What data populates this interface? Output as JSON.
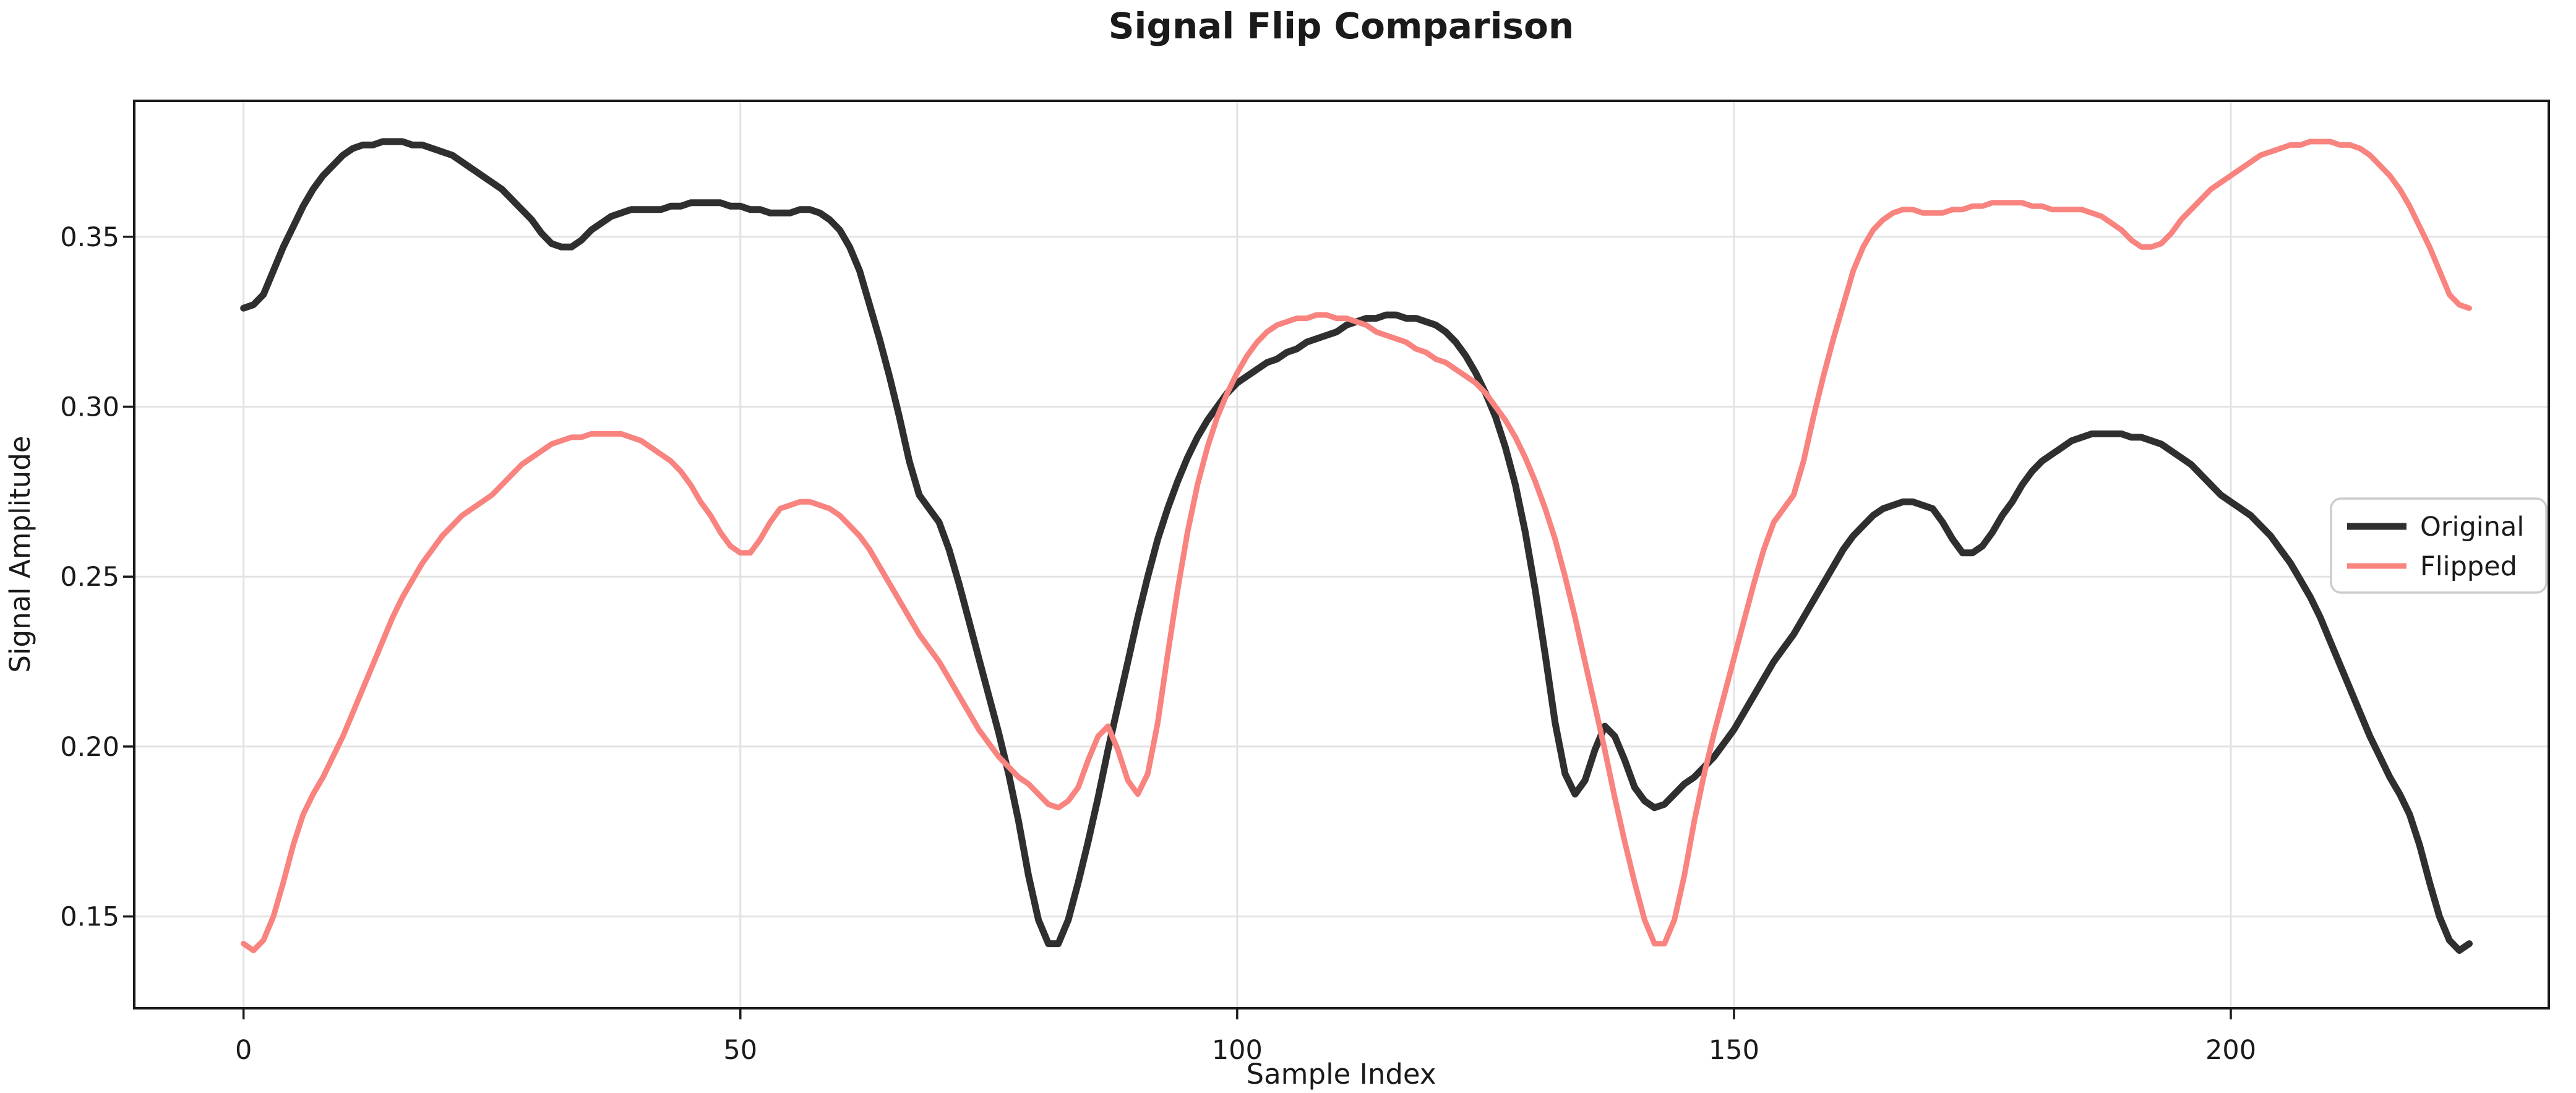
{
  "figure": {
    "title": "Signal Flip Comparison",
    "background": "#ffffff"
  },
  "axes": {
    "xlabel": "Sample Index",
    "ylabel": "Signal Amplitude",
    "x_ticks": [
      0,
      50,
      100,
      150,
      200
    ],
    "x_tick_labels": [
      "0",
      "50",
      "100",
      "150",
      "200"
    ],
    "y_ticks": [
      0.15,
      0.2,
      0.25,
      0.3,
      0.35
    ],
    "y_tick_labels": [
      "0.15",
      "0.20",
      "0.25",
      "0.30",
      "0.35"
    ],
    "xlim": [
      -11,
      232
    ],
    "ylim": [
      0.123,
      0.39
    ],
    "grid": true,
    "grid_color": "#e3e3e3",
    "spine_color": "#1a1a1a",
    "tick_color": "#1a1a1a"
  },
  "legend": {
    "position": "center-right",
    "border_color": "#cccccc",
    "background": "#ffffff",
    "items": [
      {
        "label": "Original",
        "color": "#2f2f2f",
        "linewidth": 11
      },
      {
        "label": "Flipped",
        "color": "#f8837f",
        "linewidth": 9
      }
    ]
  },
  "chart_data": {
    "type": "line",
    "title": "Signal Flip Comparison",
    "xlabel": "Sample Index",
    "ylabel": "Signal Amplitude",
    "x_description": "sample index 0..224, step 1",
    "n_points": 225,
    "xlim": [
      -11,
      232
    ],
    "ylim": [
      0.123,
      0.39
    ],
    "grid": true,
    "legend_position": "center-right",
    "flipped_is_reverse_of_original": true,
    "series": [
      {
        "name": "Original",
        "color": "#2f2f2f",
        "linewidth": 11,
        "values": [
          0.329,
          0.33,
          0.333,
          0.34,
          0.347,
          0.353,
          0.359,
          0.364,
          0.368,
          0.371,
          0.374,
          0.376,
          0.377,
          0.377,
          0.378,
          0.378,
          0.378,
          0.377,
          0.377,
          0.376,
          0.375,
          0.374,
          0.372,
          0.37,
          0.368,
          0.366,
          0.364,
          0.361,
          0.358,
          0.355,
          0.351,
          0.348,
          0.347,
          0.347,
          0.349,
          0.352,
          0.354,
          0.356,
          0.357,
          0.358,
          0.358,
          0.358,
          0.358,
          0.359,
          0.359,
          0.36,
          0.36,
          0.36,
          0.36,
          0.359,
          0.359,
          0.358,
          0.358,
          0.357,
          0.357,
          0.357,
          0.358,
          0.358,
          0.357,
          0.355,
          0.352,
          0.347,
          0.34,
          0.33,
          0.32,
          0.309,
          0.297,
          0.284,
          0.274,
          0.27,
          0.266,
          0.258,
          0.248,
          0.237,
          0.226,
          0.215,
          0.204,
          0.192,
          0.178,
          0.162,
          0.149,
          0.142,
          0.142,
          0.149,
          0.16,
          0.172,
          0.185,
          0.199,
          0.212,
          0.225,
          0.238,
          0.25,
          0.261,
          0.27,
          0.278,
          0.285,
          0.291,
          0.296,
          0.3,
          0.304,
          0.307,
          0.309,
          0.311,
          0.313,
          0.314,
          0.316,
          0.317,
          0.319,
          0.32,
          0.321,
          0.322,
          0.324,
          0.325,
          0.326,
          0.326,
          0.327,
          0.327,
          0.326,
          0.326,
          0.325,
          0.324,
          0.322,
          0.319,
          0.315,
          0.31,
          0.304,
          0.297,
          0.288,
          0.277,
          0.263,
          0.246,
          0.227,
          0.207,
          0.192,
          0.186,
          0.19,
          0.199,
          0.206,
          0.203,
          0.196,
          0.188,
          0.184,
          0.182,
          0.183,
          0.186,
          0.189,
          0.191,
          0.194,
          0.197,
          0.201,
          0.205,
          0.21,
          0.215,
          0.22,
          0.225,
          0.229,
          0.233,
          0.238,
          0.243,
          0.248,
          0.253,
          0.258,
          0.262,
          0.265,
          0.268,
          0.27,
          0.271,
          0.272,
          0.272,
          0.271,
          0.27,
          0.266,
          0.261,
          0.257,
          0.257,
          0.259,
          0.263,
          0.268,
          0.272,
          0.277,
          0.281,
          0.284,
          0.286,
          0.288,
          0.29,
          0.291,
          0.292,
          0.292,
          0.292,
          0.292,
          0.291,
          0.291,
          0.29,
          0.289,
          0.287,
          0.285,
          0.283,
          0.28,
          0.277,
          0.274,
          0.272,
          0.27,
          0.268,
          0.265,
          0.262,
          0.258,
          0.254,
          0.249,
          0.244,
          0.238,
          0.231,
          0.224,
          0.217,
          0.21,
          0.203,
          0.197,
          0.191,
          0.186,
          0.18,
          0.171,
          0.16,
          0.15,
          0.143,
          0.14,
          0.142
        ]
      },
      {
        "name": "Flipped",
        "color": "#f8837f",
        "linewidth": 9,
        "values": [
          0.142,
          0.14,
          0.143,
          0.15,
          0.16,
          0.171,
          0.18,
          0.186,
          0.191,
          0.197,
          0.203,
          0.21,
          0.217,
          0.224,
          0.231,
          0.238,
          0.244,
          0.249,
          0.254,
          0.258,
          0.262,
          0.265,
          0.268,
          0.27,
          0.272,
          0.274,
          0.277,
          0.28,
          0.283,
          0.285,
          0.287,
          0.289,
          0.29,
          0.291,
          0.291,
          0.292,
          0.292,
          0.292,
          0.292,
          0.291,
          0.29,
          0.288,
          0.286,
          0.284,
          0.281,
          0.277,
          0.272,
          0.268,
          0.263,
          0.259,
          0.257,
          0.257,
          0.261,
          0.266,
          0.27,
          0.271,
          0.272,
          0.272,
          0.271,
          0.27,
          0.268,
          0.265,
          0.262,
          0.258,
          0.253,
          0.248,
          0.243,
          0.238,
          0.233,
          0.229,
          0.225,
          0.22,
          0.215,
          0.21,
          0.205,
          0.201,
          0.197,
          0.194,
          0.191,
          0.189,
          0.186,
          0.183,
          0.182,
          0.184,
          0.188,
          0.196,
          0.203,
          0.206,
          0.199,
          0.19,
          0.186,
          0.192,
          0.207,
          0.227,
          0.246,
          0.263,
          0.277,
          0.288,
          0.297,
          0.304,
          0.31,
          0.315,
          0.319,
          0.322,
          0.324,
          0.325,
          0.326,
          0.326,
          0.327,
          0.327,
          0.326,
          0.326,
          0.325,
          0.324,
          0.322,
          0.321,
          0.32,
          0.319,
          0.317,
          0.316,
          0.314,
          0.313,
          0.311,
          0.309,
          0.307,
          0.304,
          0.3,
          0.296,
          0.291,
          0.285,
          0.278,
          0.27,
          0.261,
          0.25,
          0.238,
          0.225,
          0.212,
          0.199,
          0.185,
          0.172,
          0.16,
          0.149,
          0.142,
          0.142,
          0.149,
          0.162,
          0.178,
          0.192,
          0.204,
          0.215,
          0.226,
          0.237,
          0.248,
          0.258,
          0.266,
          0.27,
          0.274,
          0.284,
          0.297,
          0.309,
          0.32,
          0.33,
          0.34,
          0.347,
          0.352,
          0.355,
          0.357,
          0.358,
          0.358,
          0.357,
          0.357,
          0.357,
          0.358,
          0.358,
          0.359,
          0.359,
          0.36,
          0.36,
          0.36,
          0.36,
          0.359,
          0.359,
          0.358,
          0.358,
          0.358,
          0.358,
          0.357,
          0.356,
          0.354,
          0.352,
          0.349,
          0.347,
          0.347,
          0.348,
          0.351,
          0.355,
          0.358,
          0.361,
          0.364,
          0.366,
          0.368,
          0.37,
          0.372,
          0.374,
          0.375,
          0.376,
          0.377,
          0.377,
          0.378,
          0.378,
          0.378,
          0.377,
          0.377,
          0.376,
          0.374,
          0.371,
          0.368,
          0.364,
          0.359,
          0.353,
          0.347,
          0.34,
          0.333,
          0.33,
          0.329
        ]
      }
    ]
  }
}
